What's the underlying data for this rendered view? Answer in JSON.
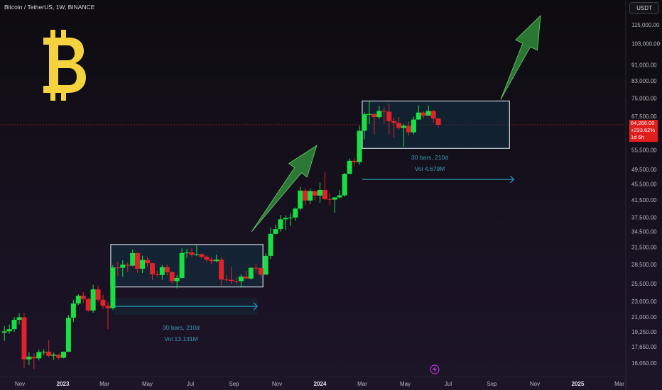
{
  "header": {
    "symbol_title": "Bitcoin / TetherUS, 1W, BINANCE"
  },
  "scale": {
    "currency": "USDT"
  },
  "price_badge": {
    "price": "64,266.00",
    "change": "+233.62%",
    "countdown": "1d 6h"
  },
  "logo": {
    "symbol": "bitcoin-logo-icon",
    "color": "#f5d33f"
  },
  "colors": {
    "up": "#17e043",
    "down": "#e2222a",
    "box_stroke": "#c8d4de",
    "box_fill": "#123244",
    "arrow": "#2f8a3a",
    "range_arrow": "#2a9fc1",
    "annotation_text": "#3d9ab4"
  },
  "chart_data": {
    "type": "candlestick",
    "title": "Bitcoin / TetherUS, 1W, BINANCE",
    "y_scale": "log",
    "ylim": [
      14800,
      126000
    ],
    "xlabel": "",
    "ylabel": "",
    "x_tick_labels": [
      "Nov",
      "2023",
      "Mar",
      "May",
      "Jul",
      "Sep",
      "Nov",
      "2024",
      "Mar",
      "May",
      "Jul",
      "Sep",
      "Nov",
      "2025",
      "Mar"
    ],
    "x_tick_dates": [
      "2022-11-01",
      "2023-01-01",
      "2023-03-01",
      "2023-05-01",
      "2023-07-01",
      "2023-09-01",
      "2023-11-01",
      "2024-01-01",
      "2024-03-01",
      "2024-05-01",
      "2024-07-01",
      "2024-09-01",
      "2024-11-01",
      "2025-01-01",
      "2025-03-01"
    ],
    "y_tick_labels": [
      115000,
      103000,
      91000,
      83000,
      75000,
      67500,
      55500,
      49500,
      45500,
      41500,
      37500,
      34500,
      31500,
      28500,
      25500,
      23000,
      21000,
      19250,
      17650,
      16050
    ],
    "last_price": 64266,
    "grid": false,
    "candle_interval": "1W",
    "candles": [
      {
        "date": "2022-10-10",
        "open": 19150,
        "high": 19900,
        "low": 18250,
        "close": 19300
      },
      {
        "date": "2022-10-17",
        "open": 19300,
        "high": 20100,
        "low": 19050,
        "close": 19550
      },
      {
        "date": "2022-10-24",
        "open": 19550,
        "high": 21000,
        "low": 19250,
        "close": 20650
      },
      {
        "date": "2022-10-31",
        "open": 20650,
        "high": 21450,
        "low": 20100,
        "close": 20950
      },
      {
        "date": "2022-11-07",
        "open": 20950,
        "high": 21500,
        "low": 15600,
        "close": 16400
      },
      {
        "date": "2022-11-14",
        "open": 16400,
        "high": 17100,
        "low": 15850,
        "close": 16650
      },
      {
        "date": "2022-11-21",
        "open": 16650,
        "high": 17000,
        "low": 15500,
        "close": 16500
      },
      {
        "date": "2022-11-28",
        "open": 16500,
        "high": 17350,
        "low": 16300,
        "close": 17100
      },
      {
        "date": "2022-12-05",
        "open": 17100,
        "high": 17400,
        "low": 16800,
        "close": 17150
      },
      {
        "date": "2022-12-12",
        "open": 17150,
        "high": 18350,
        "low": 16600,
        "close": 16750
      },
      {
        "date": "2022-12-19",
        "open": 16750,
        "high": 17050,
        "low": 16350,
        "close": 16850
      },
      {
        "date": "2022-12-26",
        "open": 16850,
        "high": 16950,
        "low": 16350,
        "close": 16550
      },
      {
        "date": "2023-01-02",
        "open": 16550,
        "high": 17150,
        "low": 16500,
        "close": 17150
      },
      {
        "date": "2023-01-09",
        "open": 17150,
        "high": 21250,
        "low": 17100,
        "close": 20900
      },
      {
        "date": "2023-01-16",
        "open": 20900,
        "high": 23200,
        "low": 20400,
        "close": 22700
      },
      {
        "date": "2023-01-23",
        "open": 22700,
        "high": 23950,
        "low": 22500,
        "close": 23750
      },
      {
        "date": "2023-01-30",
        "open": 23750,
        "high": 24250,
        "low": 22750,
        "close": 23300
      },
      {
        "date": "2023-02-06",
        "open": 23300,
        "high": 23450,
        "low": 21650,
        "close": 21800
      },
      {
        "date": "2023-02-13",
        "open": 21800,
        "high": 25300,
        "low": 21500,
        "close": 24650
      },
      {
        "date": "2023-02-20",
        "open": 24650,
        "high": 25200,
        "low": 22900,
        "close": 23200
      },
      {
        "date": "2023-02-27",
        "open": 23200,
        "high": 23900,
        "low": 22000,
        "close": 22400
      },
      {
        "date": "2023-03-06",
        "open": 22400,
        "high": 22900,
        "low": 19550,
        "close": 22100
      },
      {
        "date": "2023-03-13",
        "open": 22100,
        "high": 28400,
        "low": 21900,
        "close": 28000
      },
      {
        "date": "2023-03-20",
        "open": 28000,
        "high": 28900,
        "low": 26600,
        "close": 27950
      },
      {
        "date": "2023-03-27",
        "open": 27950,
        "high": 29200,
        "low": 26500,
        "close": 28450
      },
      {
        "date": "2023-04-03",
        "open": 28450,
        "high": 28800,
        "low": 27300,
        "close": 28300
      },
      {
        "date": "2023-04-10",
        "open": 28300,
        "high": 31000,
        "low": 28200,
        "close": 30450
      },
      {
        "date": "2023-04-17",
        "open": 30450,
        "high": 30500,
        "low": 27150,
        "close": 27800
      },
      {
        "date": "2023-04-24",
        "open": 27800,
        "high": 30000,
        "low": 27100,
        "close": 29250
      },
      {
        "date": "2023-05-01",
        "open": 29250,
        "high": 29800,
        "low": 28100,
        "close": 28700
      },
      {
        "date": "2023-05-08",
        "open": 28700,
        "high": 28800,
        "low": 26000,
        "close": 26900
      },
      {
        "date": "2023-05-15",
        "open": 26900,
        "high": 27500,
        "low": 26500,
        "close": 26800
      },
      {
        "date": "2023-05-22",
        "open": 26800,
        "high": 28400,
        "low": 26050,
        "close": 28050
      },
      {
        "date": "2023-05-29",
        "open": 28050,
        "high": 28450,
        "low": 26700,
        "close": 27250
      },
      {
        "date": "2023-06-05",
        "open": 27250,
        "high": 27400,
        "low": 25400,
        "close": 25850
      },
      {
        "date": "2023-06-12",
        "open": 25850,
        "high": 26800,
        "low": 24800,
        "close": 26350
      },
      {
        "date": "2023-06-19",
        "open": 26350,
        "high": 31300,
        "low": 26250,
        "close": 30450
      },
      {
        "date": "2023-06-26",
        "open": 30450,
        "high": 31200,
        "low": 29550,
        "close": 30550
      },
      {
        "date": "2023-07-03",
        "open": 30550,
        "high": 31400,
        "low": 29750,
        "close": 30150
      },
      {
        "date": "2023-07-10",
        "open": 30150,
        "high": 31800,
        "low": 29950,
        "close": 30250
      },
      {
        "date": "2023-07-17",
        "open": 30250,
        "high": 30400,
        "low": 29500,
        "close": 29800
      },
      {
        "date": "2023-07-24",
        "open": 29800,
        "high": 30050,
        "low": 28900,
        "close": 29300
      },
      {
        "date": "2023-07-31",
        "open": 29300,
        "high": 29700,
        "low": 28600,
        "close": 29050
      },
      {
        "date": "2023-08-07",
        "open": 29050,
        "high": 30200,
        "low": 28850,
        "close": 29300
      },
      {
        "date": "2023-08-14",
        "open": 29300,
        "high": 29700,
        "low": 25150,
        "close": 26100
      },
      {
        "date": "2023-08-21",
        "open": 26100,
        "high": 26800,
        "low": 25800,
        "close": 26050
      },
      {
        "date": "2023-08-28",
        "open": 26050,
        "high": 28150,
        "low": 25400,
        "close": 25900
      },
      {
        "date": "2023-09-04",
        "open": 25900,
        "high": 26450,
        "low": 25350,
        "close": 25850
      },
      {
        "date": "2023-09-11",
        "open": 25850,
        "high": 26900,
        "low": 24900,
        "close": 26550
      },
      {
        "date": "2023-09-18",
        "open": 26550,
        "high": 27450,
        "low": 26350,
        "close": 26250
      },
      {
        "date": "2023-09-25",
        "open": 26250,
        "high": 28000,
        "low": 26050,
        "close": 27950
      },
      {
        "date": "2023-10-02",
        "open": 27950,
        "high": 28600,
        "low": 27150,
        "close": 27900
      },
      {
        "date": "2023-10-09",
        "open": 27900,
        "high": 28000,
        "low": 26550,
        "close": 26850
      },
      {
        "date": "2023-10-16",
        "open": 26850,
        "high": 30400,
        "low": 26950,
        "close": 29950
      },
      {
        "date": "2023-10-23",
        "open": 29950,
        "high": 35300,
        "low": 29450,
        "close": 34050
      },
      {
        "date": "2023-10-30",
        "open": 34050,
        "high": 35950,
        "low": 33950,
        "close": 35000
      },
      {
        "date": "2023-11-06",
        "open": 35000,
        "high": 38000,
        "low": 34500,
        "close": 37050
      },
      {
        "date": "2023-11-13",
        "open": 37050,
        "high": 37950,
        "low": 34800,
        "close": 37350
      },
      {
        "date": "2023-11-20",
        "open": 37350,
        "high": 38400,
        "low": 35600,
        "close": 37450
      },
      {
        "date": "2023-11-27",
        "open": 37450,
        "high": 39700,
        "low": 36800,
        "close": 39450
      },
      {
        "date": "2023-12-04",
        "open": 39450,
        "high": 44700,
        "low": 39000,
        "close": 43800
      },
      {
        "date": "2023-12-11",
        "open": 43800,
        "high": 44400,
        "low": 40200,
        "close": 41350
      },
      {
        "date": "2023-12-18",
        "open": 41350,
        "high": 44300,
        "low": 40500,
        "close": 43700
      },
      {
        "date": "2023-12-25",
        "open": 43700,
        "high": 43800,
        "low": 41400,
        "close": 42550
      },
      {
        "date": "2024-01-01",
        "open": 42550,
        "high": 45900,
        "low": 40750,
        "close": 43950
      },
      {
        "date": "2024-01-08",
        "open": 43950,
        "high": 48950,
        "low": 41500,
        "close": 41700
      },
      {
        "date": "2024-01-15",
        "open": 41700,
        "high": 43200,
        "low": 40250,
        "close": 41550
      },
      {
        "date": "2024-01-22",
        "open": 41550,
        "high": 42100,
        "low": 38500,
        "close": 42100
      },
      {
        "date": "2024-01-29",
        "open": 42100,
        "high": 43900,
        "low": 41900,
        "close": 42600
      },
      {
        "date": "2024-02-05",
        "open": 42600,
        "high": 48550,
        "low": 42250,
        "close": 48300
      },
      {
        "date": "2024-02-12",
        "open": 48300,
        "high": 52800,
        "low": 48250,
        "close": 52100
      },
      {
        "date": "2024-02-19",
        "open": 52100,
        "high": 52950,
        "low": 50600,
        "close": 51700
      },
      {
        "date": "2024-02-26",
        "open": 51700,
        "high": 64000,
        "low": 50900,
        "close": 62050
      },
      {
        "date": "2024-03-04",
        "open": 62050,
        "high": 69000,
        "low": 59000,
        "close": 68300
      },
      {
        "date": "2024-03-11",
        "open": 68300,
        "high": 73800,
        "low": 64500,
        "close": 68400
      },
      {
        "date": "2024-03-18",
        "open": 68400,
        "high": 68900,
        "low": 60800,
        "close": 67200
      },
      {
        "date": "2024-03-25",
        "open": 67200,
        "high": 71800,
        "low": 66400,
        "close": 69650
      },
      {
        "date": "2024-04-01",
        "open": 69650,
        "high": 71300,
        "low": 64500,
        "close": 69350
      },
      {
        "date": "2024-04-08",
        "open": 69350,
        "high": 72800,
        "low": 60700,
        "close": 65650
      },
      {
        "date": "2024-04-15",
        "open": 65650,
        "high": 66900,
        "low": 59600,
        "close": 64950
      },
      {
        "date": "2024-04-22",
        "open": 64950,
        "high": 67250,
        "low": 62400,
        "close": 63100
      },
      {
        "date": "2024-04-29",
        "open": 63100,
        "high": 64700,
        "low": 56550,
        "close": 63900
      },
      {
        "date": "2024-05-06",
        "open": 63900,
        "high": 65500,
        "low": 60200,
        "close": 61500
      },
      {
        "date": "2024-05-13",
        "open": 61500,
        "high": 67400,
        "low": 60800,
        "close": 66250
      },
      {
        "date": "2024-05-20",
        "open": 66250,
        "high": 71900,
        "low": 66200,
        "close": 69000
      },
      {
        "date": "2024-05-27",
        "open": 69000,
        "high": 69500,
        "low": 66600,
        "close": 67750
      },
      {
        "date": "2024-06-03",
        "open": 67750,
        "high": 71900,
        "low": 68300,
        "close": 69650
      },
      {
        "date": "2024-06-10",
        "open": 69650,
        "high": 70200,
        "low": 65050,
        "close": 66650
      },
      {
        "date": "2024-06-17",
        "open": 66650,
        "high": 66900,
        "low": 63350,
        "close": 64266
      }
    ],
    "annotations": [
      {
        "type": "range_box",
        "start": "2023-03-13",
        "end": "2023-10-09",
        "low": 25000,
        "high": 32000,
        "bars_label": "30 bars, 210d",
        "volume_label": "Vol 13.131M"
      },
      {
        "type": "range_box",
        "start": "2024-03-04",
        "end": "2024-09-23",
        "low": 56000,
        "high": 73800,
        "bars_label": "30 bars, 210d",
        "volume_label": "Vol 4,679M"
      }
    ]
  }
}
